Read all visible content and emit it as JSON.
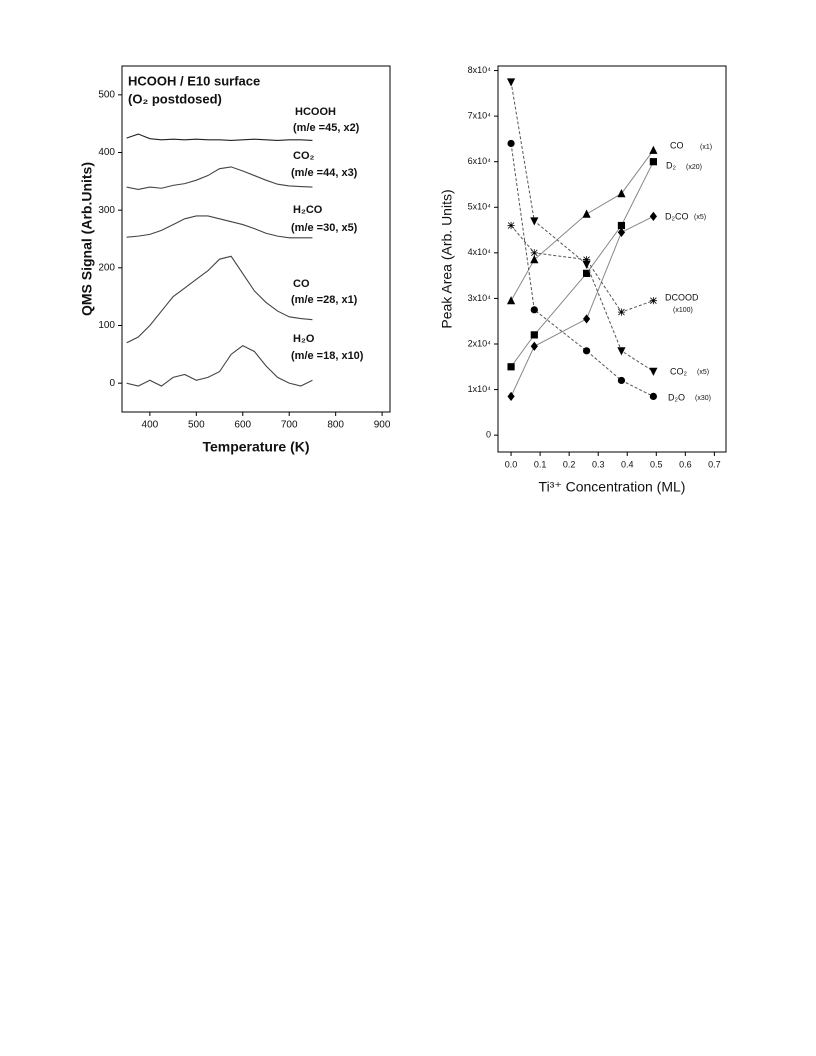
{
  "chart_data": [
    {
      "type": "line",
      "title": "HCOOH / E10 surface",
      "subtitle": "(O₂ postdosed)",
      "x_label": "Temperature (K)",
      "y_label": "QMS Signal (Arb.Units)",
      "xlim": [
        340,
        917
      ],
      "ylim": [
        -50,
        550
      ],
      "xticks": [
        400,
        500,
        600,
        700,
        800,
        900
      ],
      "yticks": [
        0,
        100,
        200,
        300,
        400,
        500
      ],
      "x": [
        350,
        375,
        400,
        425,
        450,
        475,
        500,
        525,
        550,
        575,
        600,
        625,
        650,
        675,
        700,
        725,
        750
      ],
      "series": [
        {
          "name": "HCOOH",
          "detail": "(m/e =45, x2)",
          "color": "#222222",
          "values": [
            425,
            432,
            424,
            422,
            423,
            422,
            423,
            422,
            422,
            421,
            422,
            423,
            422,
            421,
            422,
            422,
            421
          ]
        },
        {
          "name": "CO₂",
          "detail": "(m/e =44, x3)",
          "color": "#444444",
          "values": [
            340,
            336,
            340,
            338,
            343,
            346,
            352,
            360,
            372,
            375,
            368,
            360,
            352,
            345,
            342,
            341,
            340
          ]
        },
        {
          "name": "H₂CO",
          "detail": "(m/e =30, x5)",
          "color": "#444444",
          "values": [
            253,
            255,
            258,
            265,
            275,
            285,
            290,
            290,
            285,
            280,
            275,
            268,
            260,
            255,
            252,
            252,
            252
          ]
        },
        {
          "name": "CO",
          "detail": "(m/e =28, x1)",
          "color": "#444444",
          "values": [
            70,
            80,
            100,
            125,
            150,
            165,
            180,
            195,
            215,
            220,
            190,
            160,
            140,
            125,
            115,
            112,
            110
          ]
        },
        {
          "name": "H₂O",
          "detail": "(m/e =18, x10)",
          "color": "#444444",
          "values": [
            0,
            -5,
            5,
            -5,
            10,
            15,
            5,
            10,
            20,
            50,
            65,
            55,
            30,
            10,
            0,
            -5,
            5
          ]
        }
      ]
    },
    {
      "type": "scatter-line",
      "x_label": "Ti³⁺ Concentration (ML)",
      "y_label": "Peak Area (Arb. Units)",
      "xlim": [
        -0.045,
        0.74
      ],
      "ylim": [
        -3700,
        81000
      ],
      "xticks": [
        {
          "value": 0,
          "label": "0.0"
        },
        0.1,
        0.2,
        0.3,
        0.4,
        0.5,
        0.6,
        0.7
      ],
      "yticks": [
        0,
        {
          "value": 10000,
          "label": "1x10⁴"
        },
        {
          "value": 20000,
          "label": "2x10⁴"
        },
        {
          "value": 30000,
          "label": "3x10⁴"
        },
        {
          "value": 40000,
          "label": "4x10⁴"
        },
        {
          "value": 50000,
          "label": "5x10⁴"
        },
        {
          "value": 60000,
          "label": "6x10⁴"
        },
        {
          "value": 70000,
          "label": "7x10⁴"
        },
        {
          "value": 80000,
          "label": "8x10⁴"
        }
      ],
      "x": [
        0.0,
        0.08,
        0.26,
        0.38,
        0.49
      ],
      "series": [
        {
          "name": "CO",
          "detail": "(x1)",
          "marker": "triangle-up",
          "line_style": "solid",
          "color": "#000000",
          "values": [
            29500,
            38500,
            48500,
            53000,
            62500
          ]
        },
        {
          "name": "D₂",
          "detail": "(x20)",
          "marker": "square",
          "line_style": "solid",
          "color": "#000000",
          "values": [
            15000,
            22000,
            35500,
            46000,
            60000
          ]
        },
        {
          "name": "D₂CO",
          "detail": "(x5)",
          "marker": "diamond",
          "line_style": "solid",
          "color": "#000000",
          "values": [
            8500,
            19500,
            25500,
            44500,
            48000
          ]
        },
        {
          "name": "DCOOD",
          "detail": "(x100)",
          "marker": "asterisk",
          "line_style": "dashed",
          "color": "#000000",
          "values": [
            46000,
            40000,
            38500,
            27000,
            29500
          ]
        },
        {
          "name": "CO₂",
          "detail": "(x5)",
          "marker": "triangle-down",
          "line_style": "dashed",
          "color": "#000000",
          "values": [
            77500,
            47000,
            37500,
            18500,
            14000
          ]
        },
        {
          "name": "D₂O",
          "detail": "(x30)",
          "marker": "circle",
          "line_style": "dashed",
          "color": "#000000",
          "values": [
            64000,
            27500,
            18500,
            12000,
            8500
          ]
        }
      ]
    }
  ]
}
